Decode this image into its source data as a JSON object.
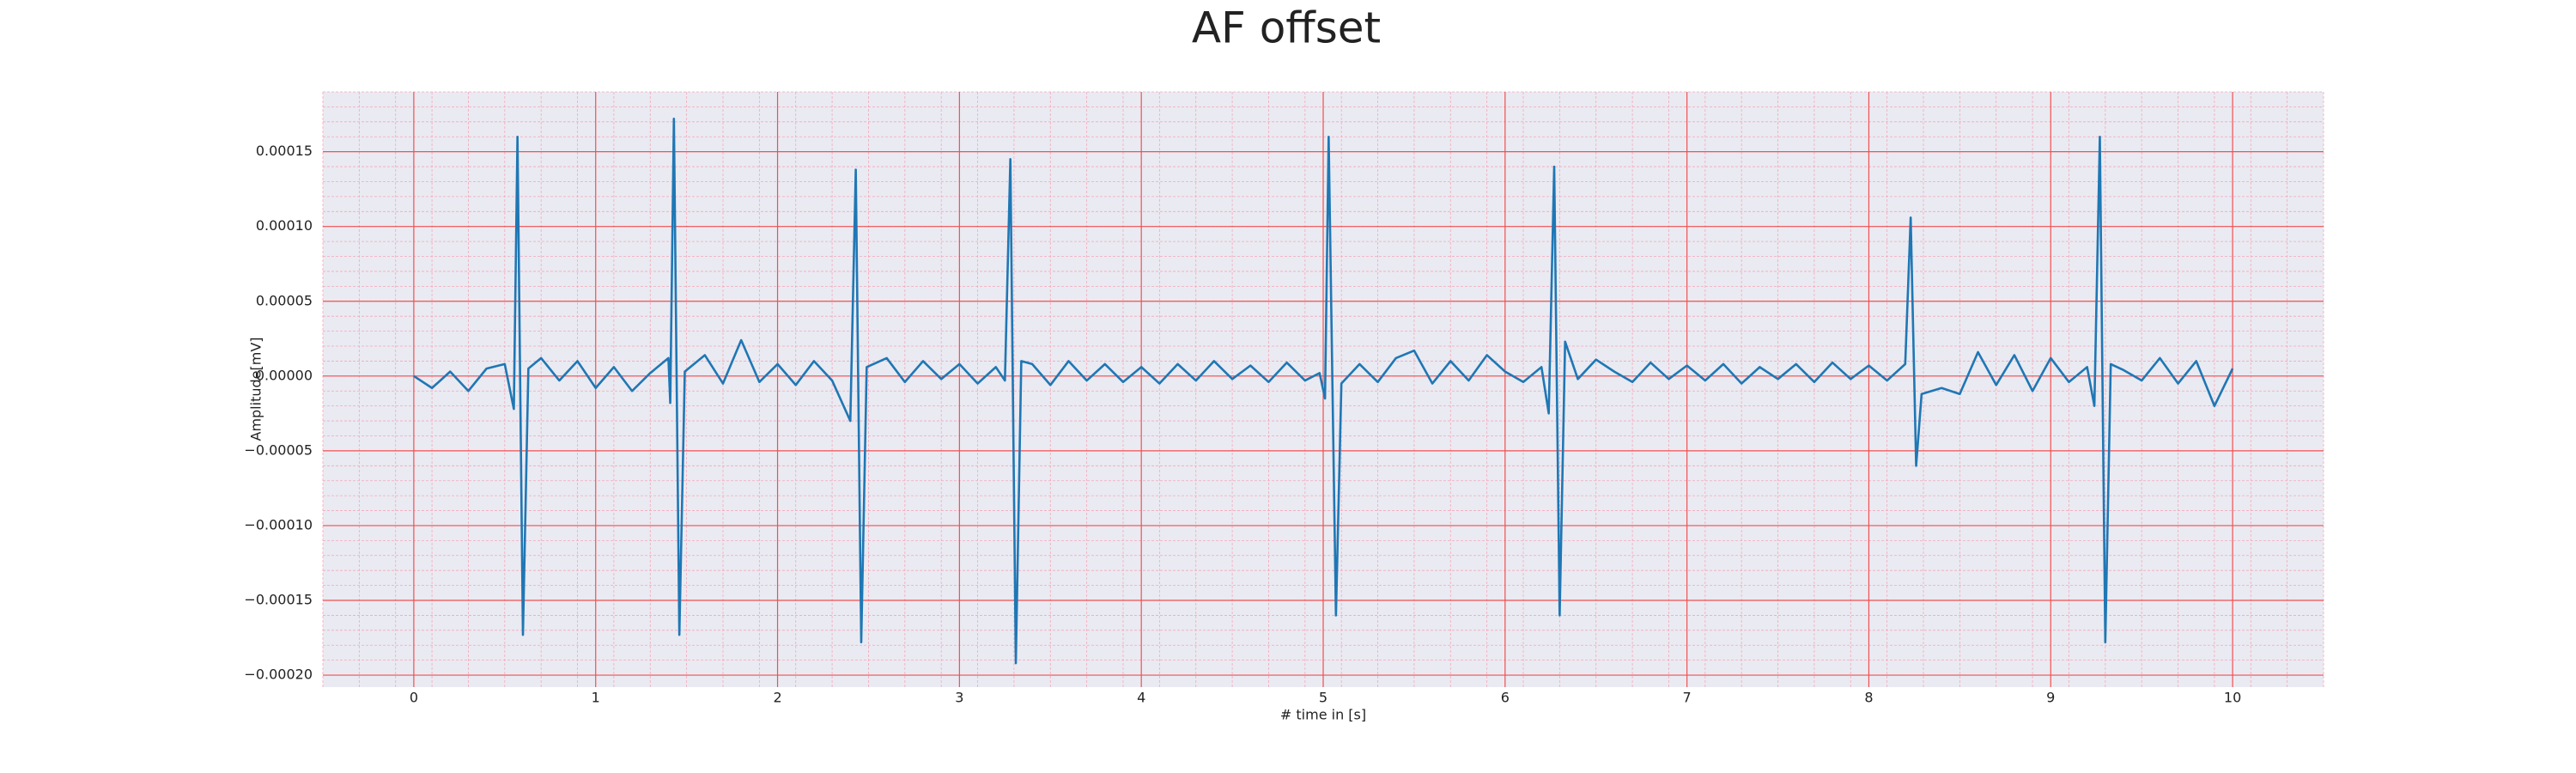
{
  "chart_data": {
    "type": "line",
    "title": "AF offset",
    "x_label": "# time in [s]",
    "y_label": "Amplitude[mV]",
    "xlim": [
      -0.5,
      10.5
    ],
    "ylim": [
      -0.000208,
      0.00019
    ],
    "xticks": [
      0,
      1,
      2,
      3,
      4,
      5,
      6,
      7,
      8,
      9,
      10
    ],
    "yticks": [
      {
        "value": -0.0002,
        "label": "−0.00020"
      },
      {
        "value": -0.00015,
        "label": "−0.00015"
      },
      {
        "value": -0.0001,
        "label": "−0.00010"
      },
      {
        "value": -5e-05,
        "label": "−0.00005"
      },
      {
        "value": 0,
        "label": "0.00000"
      },
      5e-05,
      {
        "value": 0.0001,
        "label": "0.00010"
      },
      0.00015
    ],
    "grid": true,
    "minor_grid": true,
    "background": "#eaeaf2",
    "grid_color": "#f05050",
    "minor_grid_color": "#f4a8b8",
    "series": [
      {
        "color": "#1f77b4",
        "x": [
          0.0,
          0.1,
          0.2,
          0.3,
          0.4,
          0.5,
          0.55,
          0.57,
          0.6,
          0.63,
          0.7,
          0.8,
          0.9,
          1.0,
          1.1,
          1.2,
          1.3,
          1.4,
          1.41,
          1.43,
          1.46,
          1.49,
          1.6,
          1.7,
          1.8,
          1.9,
          2.0,
          2.1,
          2.2,
          2.3,
          2.4,
          2.43,
          2.46,
          2.49,
          2.6,
          2.7,
          2.8,
          2.9,
          3.0,
          3.1,
          3.2,
          3.25,
          3.28,
          3.31,
          3.34,
          3.4,
          3.5,
          3.6,
          3.7,
          3.8,
          3.9,
          4.0,
          4.1,
          4.2,
          4.3,
          4.4,
          4.5,
          4.6,
          4.7,
          4.8,
          4.9,
          4.98,
          5.01,
          5.03,
          5.07,
          5.1,
          5.2,
          5.3,
          5.4,
          5.5,
          5.6,
          5.7,
          5.8,
          5.9,
          6.0,
          6.1,
          6.2,
          6.24,
          6.27,
          6.3,
          6.33,
          6.4,
          6.5,
          6.6,
          6.7,
          6.8,
          6.9,
          7.0,
          7.1,
          7.2,
          7.3,
          7.4,
          7.5,
          7.6,
          7.7,
          7.8,
          7.9,
          8.0,
          8.1,
          8.2,
          8.23,
          8.26,
          8.29,
          8.4,
          8.5,
          8.6,
          8.7,
          8.8,
          8.9,
          9.0,
          9.1,
          9.2,
          9.24,
          9.27,
          9.3,
          9.33,
          9.4,
          9.5,
          9.6,
          9.7,
          9.8,
          9.9,
          10.0
        ],
        "values": [
          0,
          -8e-06,
          3e-06,
          -1e-05,
          5e-06,
          8e-06,
          -2.2e-05,
          0.00016,
          -0.000173,
          5e-06,
          1.2e-05,
          -3e-06,
          1e-05,
          -8e-06,
          6e-06,
          -1e-05,
          2e-06,
          1.2e-05,
          -1.8e-05,
          0.000172,
          -0.000173,
          3e-06,
          1.4e-05,
          -5e-06,
          2.4e-05,
          -4e-06,
          8e-06,
          -6e-06,
          1e-05,
          -3e-06,
          -3e-05,
          0.000138,
          -0.000178,
          6e-06,
          1.2e-05,
          -4e-06,
          1e-05,
          -2e-06,
          8e-06,
          -5e-06,
          6e-06,
          -3e-06,
          0.000145,
          -0.000192,
          1e-05,
          8e-06,
          -6e-06,
          1e-05,
          -3e-06,
          8e-06,
          -4e-06,
          6e-06,
          -5e-06,
          8e-06,
          -3e-06,
          1e-05,
          -2e-06,
          7e-06,
          -4e-06,
          9e-06,
          -3e-06,
          2e-06,
          -1.5e-05,
          0.00016,
          -0.00016,
          -5e-06,
          8e-06,
          -4e-06,
          1.2e-05,
          1.7e-05,
          -5e-06,
          1e-05,
          -3e-06,
          1.4e-05,
          3e-06,
          -4e-06,
          6e-06,
          -2.5e-05,
          0.00014,
          -0.00016,
          2.3e-05,
          -2e-06,
          1.1e-05,
          3e-06,
          -4e-06,
          9e-06,
          -2e-06,
          7e-06,
          -3e-06,
          8e-06,
          -5e-06,
          6e-06,
          -2e-06,
          8e-06,
          -4e-06,
          9e-06,
          -2e-06,
          7e-06,
          -3e-06,
          8e-06,
          0.000106,
          -6e-05,
          -1.2e-05,
          -8e-06,
          -1.2e-05,
          1.6e-05,
          -6e-06,
          1.4e-05,
          -1e-05,
          1.2e-05,
          -4e-06,
          6e-06,
          -2e-05,
          0.00016,
          -0.000178,
          8e-06,
          4e-06,
          -3e-06,
          1.2e-05,
          -5e-06,
          1e-05,
          -2e-05,
          5e-06
        ]
      }
    ]
  }
}
